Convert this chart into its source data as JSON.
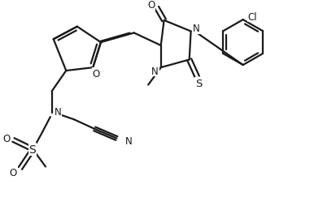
{
  "bg_color": "#ffffff",
  "line_color": "#1a1a1a",
  "line_width": 1.6,
  "label_fontsize": 8.5,
  "figsize": [
    3.97,
    2.55
  ],
  "dpi": 100,
  "xlim": [
    0,
    10
  ],
  "ylim": [
    0,
    6.4
  ]
}
